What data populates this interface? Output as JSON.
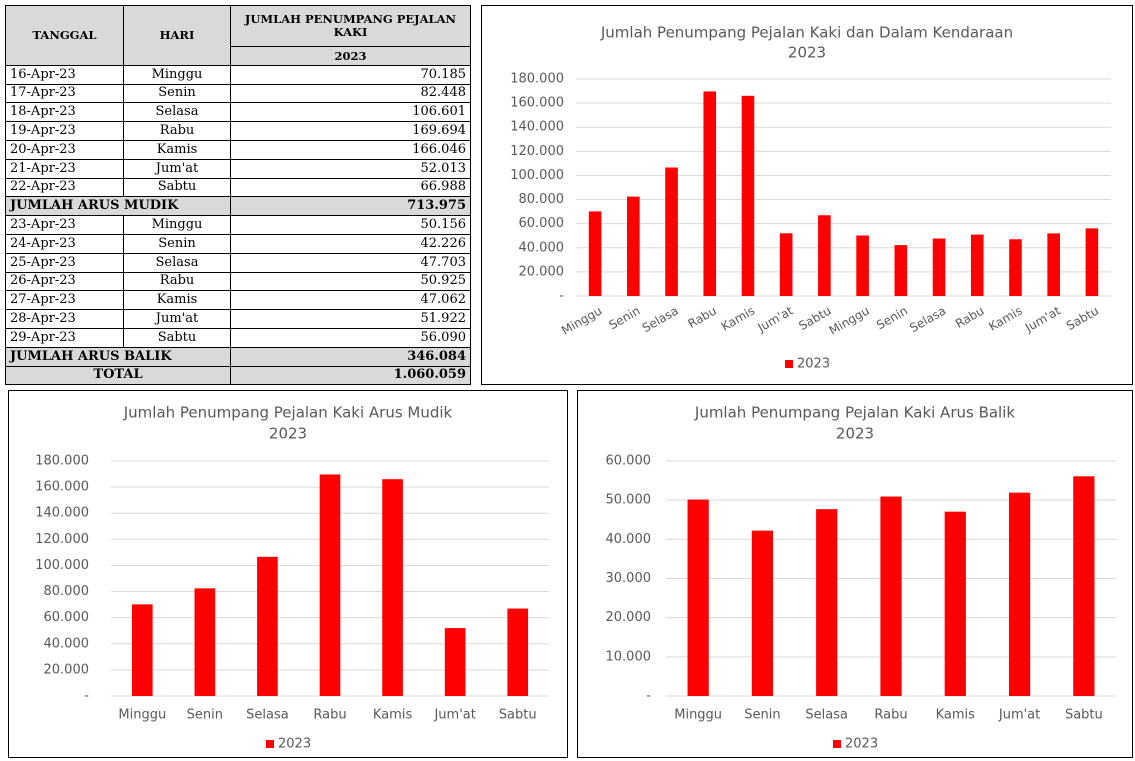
{
  "table": {
    "header": {
      "date": "TANGGAL",
      "day": "HARI",
      "count": "JUMLAH PENUMPANG PEJALAN KAKI",
      "year": "2023"
    },
    "rows": [
      [
        "16-Apr-23",
        "Minggu",
        "70.185"
      ],
      [
        "17-Apr-23",
        "Senin",
        "82.448"
      ],
      [
        "18-Apr-23",
        "Selasa",
        "106.601"
      ],
      [
        "19-Apr-23",
        "Rabu",
        "169.694"
      ],
      [
        "20-Apr-23",
        "Kamis",
        "166.046"
      ],
      [
        "21-Apr-23",
        "Jum'at",
        "52.013"
      ],
      [
        "22-Apr-23",
        "Sabtu",
        "66.988"
      ],
      [
        "JUMLAH ARUS MUDIK",
        "713.975"
      ],
      [
        "23-Apr-23",
        "Minggu",
        "50.156"
      ],
      [
        "24-Apr-23",
        "Senin",
        "42.226"
      ],
      [
        "25-Apr-23",
        "Selasa",
        "47.703"
      ],
      [
        "26-Apr-23",
        "Rabu",
        "50.925"
      ],
      [
        "27-Apr-23",
        "Kamis",
        "47.062"
      ],
      [
        "28-Apr-23",
        "Jum'at",
        "51.922"
      ],
      [
        "29-Apr-23",
        "Sabtu",
        "56.090"
      ],
      [
        "JUMLAH ARUS BALIK",
        "346.084"
      ],
      [
        "TOTAL",
        "1.060.059"
      ]
    ]
  },
  "chart_data": [
    {
      "type": "bar",
      "title": "Jumlah Penumpang Pejalan Kaki dan Dalam Kendaraan",
      "subtitle": "2023",
      "categories": [
        "Minggu",
        "Senin",
        "Selasa",
        "Rabu",
        "Kamis",
        "Jum'at",
        "Sabtu",
        "Minggu",
        "Senin",
        "Selasa",
        "Rabu",
        "Kamis",
        "Jum'at",
        "Sabtu"
      ],
      "series": [
        {
          "name": "2023",
          "color": "#ff0000",
          "values": [
            70185,
            82448,
            106601,
            169694,
            166046,
            52013,
            66988,
            50156,
            42226,
            47703,
            50925,
            47062,
            51922,
            56090
          ]
        }
      ],
      "ylim": [
        0,
        180000
      ],
      "yticks": [
        {
          "value": 0,
          "label": "-"
        },
        {
          "value": 20000,
          "label": "20.000"
        },
        {
          "value": 40000,
          "label": "40.000"
        },
        {
          "value": 60000,
          "label": "60.000"
        },
        {
          "value": 80000,
          "label": "80.000"
        },
        {
          "value": 100000,
          "label": "100.000"
        },
        {
          "value": 120000,
          "label": "120.000"
        },
        {
          "value": 140000,
          "label": "140.000"
        },
        {
          "value": 160000,
          "label": "160.000"
        },
        {
          "value": 180000,
          "label": "180.000"
        }
      ],
      "grid": true,
      "legend": "bottom"
    },
    {
      "type": "bar",
      "title": "Jumlah Penumpang Pejalan Kaki Arus Mudik",
      "subtitle": "2023",
      "categories": [
        "Minggu",
        "Senin",
        "Selasa",
        "Rabu",
        "Kamis",
        "Jum'at",
        "Sabtu"
      ],
      "series": [
        {
          "name": "2023",
          "color": "#ff0000",
          "values": [
            70185,
            82448,
            106601,
            169694,
            166046,
            52013,
            66988
          ]
        }
      ],
      "ylim": [
        0,
        180000
      ],
      "yticks": [
        {
          "value": 0,
          "label": "-"
        },
        {
          "value": 20000,
          "label": "20.000"
        },
        {
          "value": 40000,
          "label": "40.000"
        },
        {
          "value": 60000,
          "label": "60.000"
        },
        {
          "value": 80000,
          "label": "80.000"
        },
        {
          "value": 100000,
          "label": "100.000"
        },
        {
          "value": 120000,
          "label": "120.000"
        },
        {
          "value": 140000,
          "label": "140.000"
        },
        {
          "value": 160000,
          "label": "160.000"
        },
        {
          "value": 180000,
          "label": "180.000"
        }
      ],
      "grid": true,
      "legend": "bottom"
    },
    {
      "type": "bar",
      "title": "Jumlah Penumpang Pejalan Kaki Arus Balik",
      "subtitle": "2023",
      "categories": [
        "Minggu",
        "Senin",
        "Selasa",
        "Rabu",
        "Kamis",
        "Jum'at",
        "Sabtu"
      ],
      "series": [
        {
          "name": "2023",
          "color": "#ff0000",
          "values": [
            50156,
            42226,
            47703,
            50925,
            47062,
            51922,
            56090
          ]
        }
      ],
      "ylim": [
        0,
        60000
      ],
      "yticks": [
        {
          "value": 0,
          "label": "-"
        },
        {
          "value": 10000,
          "label": "10.000"
        },
        {
          "value": 20000,
          "label": "20.000"
        },
        {
          "value": 30000,
          "label": "30.000"
        },
        {
          "value": 40000,
          "label": "40.000"
        },
        {
          "value": 50000,
          "label": "50.000"
        },
        {
          "value": 60000,
          "label": "60.000"
        }
      ],
      "grid": true,
      "legend": "bottom"
    }
  ]
}
